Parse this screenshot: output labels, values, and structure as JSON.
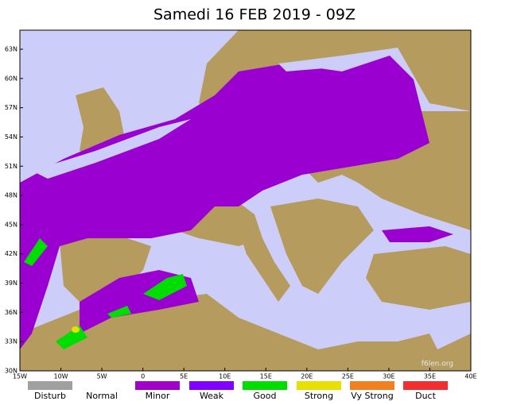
{
  "title": "Samedi 16 FEB 2019 - 09Z",
  "lat_labels": [
    "63N",
    "60N",
    "57N",
    "54N",
    "51N",
    "48N",
    "45N",
    "42N",
    "39N",
    "36N",
    "33N",
    "30N"
  ],
  "lon_labels": [
    "15W",
    "10W",
    "5W",
    "0",
    "5E",
    "10E",
    "15E",
    "20E",
    "25E",
    "30E",
    "35E",
    "40E"
  ],
  "legend": [
    {
      "label": "Disturb",
      "color": "#a0a0a0"
    },
    {
      "label": "Normal",
      "color": "#ffffff"
    },
    {
      "label": "Minor",
      "color": "#a000c8"
    },
    {
      "label": "Weak",
      "color": "#8000ff"
    },
    {
      "label": "Good",
      "color": "#00dd00"
    },
    {
      "label": "Strong",
      "color": "#e8e000"
    },
    {
      "label": "Vy Strong",
      "color": "#f08020"
    },
    {
      "label": "Duct",
      "color": "#f03030"
    }
  ],
  "watermark": "f6len.org"
}
